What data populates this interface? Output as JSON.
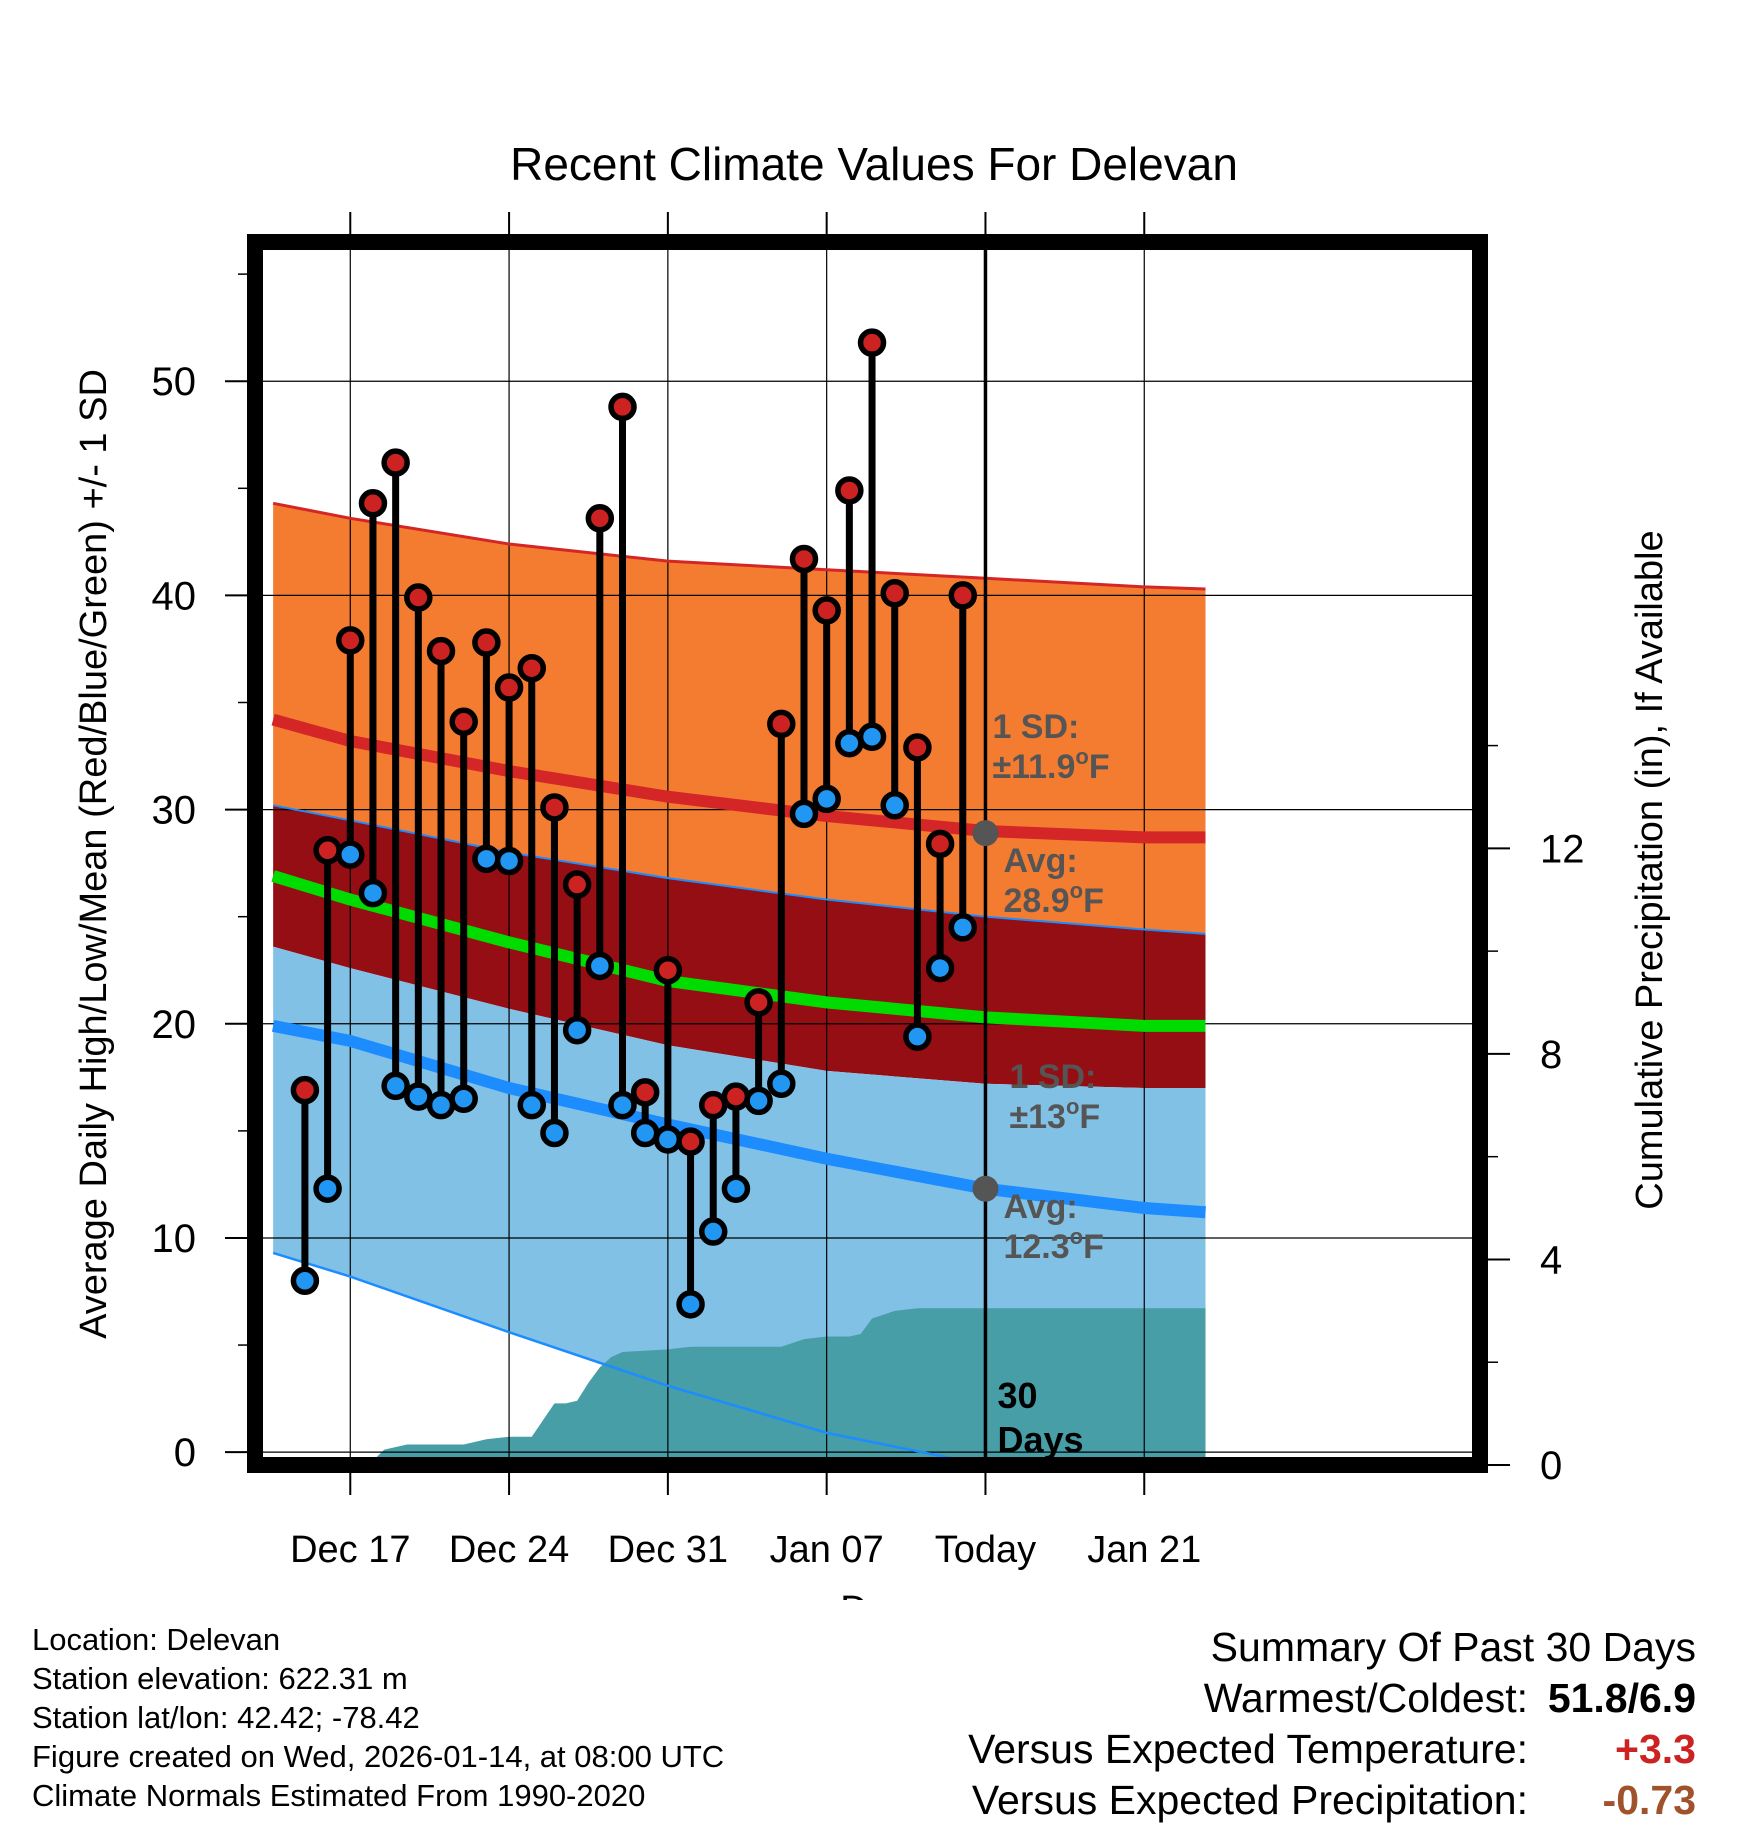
{
  "chart_data": {
    "type": "line",
    "title": "Recent Climate Values For Delevan",
    "xlabel": "Day",
    "ylabel": "Average Daily High/Low/Mean (Red/Blue/Green) +/- 1 SD",
    "ylabel_right": "Cumulative Precipitation (in), If Available",
    "ylim": [
      -0.6,
      56.5
    ],
    "ylim_right": [
      0,
      23.8
    ],
    "xlim": [
      -4.2,
      49.8
    ],
    "yticks": [
      0,
      10,
      20,
      30,
      40,
      50
    ],
    "yticks_right": [
      0,
      4,
      8,
      12
    ],
    "xticks": [
      {
        "day": 0,
        "label": "Dec 17"
      },
      {
        "day": 7,
        "label": "Dec 24"
      },
      {
        "day": 14,
        "label": "Dec 31"
      },
      {
        "day": 21,
        "label": "Jan 07"
      },
      {
        "day": 28,
        "label": "Today"
      },
      {
        "day": 35,
        "label": "Jan 21"
      }
    ],
    "today_day": 28,
    "period_label": "30 Days",
    "normals": {
      "days": [
        -3.4,
        0,
        7,
        14,
        21,
        28,
        35,
        37.7
      ],
      "high_upper": [
        44.3,
        43.6,
        42.4,
        41.6,
        41.2,
        40.8,
        40.4,
        40.3
      ],
      "high_mean": [
        34.2,
        33.2,
        31.8,
        30.6,
        29.7,
        29.0,
        28.7,
        28.7
      ],
      "high_lower": [
        30.2,
        29.5,
        28.0,
        26.8,
        25.8,
        25.0,
        24.4,
        24.2
      ],
      "mean": [
        26.9,
        25.8,
        23.8,
        22.0,
        21.0,
        20.3,
        19.9,
        19.9
      ],
      "low_upper": [
        23.6,
        22.6,
        20.7,
        19.0,
        17.8,
        17.2,
        17.0,
        17.0
      ],
      "low_mean": [
        19.9,
        19.2,
        17.0,
        15.3,
        13.7,
        12.3,
        11.4,
        11.2
      ],
      "low_lower": [
        9.3,
        8.2,
        5.6,
        3.1,
        0.9,
        -0.6,
        -0.6,
        -0.6
      ]
    },
    "annotations": {
      "high_sd": "1 SD:",
      "high_sd_value": "±11.9",
      "high_avg": "Avg:",
      "high_avg_value": "28.9",
      "high_avg_num": 28.9,
      "low_sd": "1 SD:",
      "low_sd_value": "±13",
      "low_avg": "Avg:",
      "low_avg_value": "12.3",
      "low_avg_num": 12.3,
      "degree_unit": "o",
      "unit_letter": "F"
    },
    "series": [
      {
        "name": "High",
        "days": [
          -2,
          -1,
          0,
          1,
          2,
          3,
          4,
          5,
          6,
          7,
          8,
          9,
          10,
          11,
          12,
          13,
          14,
          15,
          16,
          17,
          18,
          19,
          20,
          21,
          22,
          23,
          24,
          25,
          26,
          27
        ],
        "values": [
          16.9,
          28.1,
          37.9,
          44.3,
          46.2,
          39.9,
          37.4,
          34.1,
          37.8,
          35.7,
          36.6,
          30.1,
          26.5,
          43.6,
          48.8,
          16.8,
          22.5,
          14.5,
          16.2,
          16.6,
          21.0,
          34.0,
          41.7,
          39.3,
          44.9,
          51.8,
          40.1,
          32.9,
          28.4,
          40.0
        ]
      },
      {
        "name": "Low",
        "days": [
          -2,
          -1,
          0,
          1,
          2,
          3,
          4,
          5,
          6,
          7,
          8,
          9,
          10,
          11,
          12,
          13,
          14,
          15,
          16,
          17,
          18,
          19,
          20,
          21,
          22,
          23,
          24,
          25,
          26,
          27
        ],
        "values": [
          8.0,
          12.3,
          27.9,
          26.1,
          17.1,
          16.6,
          16.2,
          16.5,
          27.7,
          27.6,
          16.2,
          14.9,
          19.7,
          22.7,
          16.2,
          14.9,
          14.6,
          6.9,
          10.3,
          12.3,
          16.4,
          17.2,
          29.8,
          30.5,
          33.1,
          33.4,
          30.2,
          19.4,
          22.6,
          24.5
        ]
      },
      {
        "name": "Cumulative Precipitation",
        "days": [
          -4.2,
          0.8,
          1.5,
          2.5,
          5,
          5.5,
          6,
          7,
          8,
          9,
          9.5,
          10,
          10.5,
          11,
          11.5,
          12,
          14,
          15,
          17,
          19,
          20,
          21,
          22,
          22.5,
          23,
          24,
          25,
          30,
          37.7
        ],
        "values": [
          0,
          0,
          0.3,
          0.4,
          0.4,
          0.45,
          0.5,
          0.55,
          0.55,
          1.2,
          1.2,
          1.25,
          1.6,
          1.9,
          2.1,
          2.2,
          2.25,
          2.3,
          2.3,
          2.3,
          2.45,
          2.5,
          2.5,
          2.55,
          2.85,
          3.0,
          3.05,
          3.05,
          3.05
        ]
      }
    ]
  },
  "footer": {
    "location": "Location: Delevan",
    "elevation": "Station elevation: 622.31 m",
    "latlon": "Station lat/lon: 42.42; -78.42",
    "created": "Figure created on Wed, 2026-01-14, at 08:00 UTC",
    "normals": "Climate Normals Estimated From 1990-2020"
  },
  "summary": {
    "heading": "Summary Of Past 30 Days",
    "warmest_label": "Warmest/Coldest:",
    "warmest_value": "51.8/6.9",
    "temp_label": "Versus Expected Temperature:",
    "temp_value": "+3.3",
    "precip_label": "Versus Expected Precipitation:",
    "precip_value": "-0.73"
  },
  "colors": {
    "high_band": "#f47c30",
    "high_line": "#d42626",
    "mid_band": "#940e14",
    "mean_line": "#00dc00",
    "low_band": "#82c1e6",
    "low_line": "#1c8cff",
    "precip": "#479ea7",
    "high_marker": "#cc2222",
    "low_marker": "#2196f3",
    "annotation": "#555555",
    "temp_positive": "#cc2222",
    "precip_negative": "#a0522d"
  }
}
